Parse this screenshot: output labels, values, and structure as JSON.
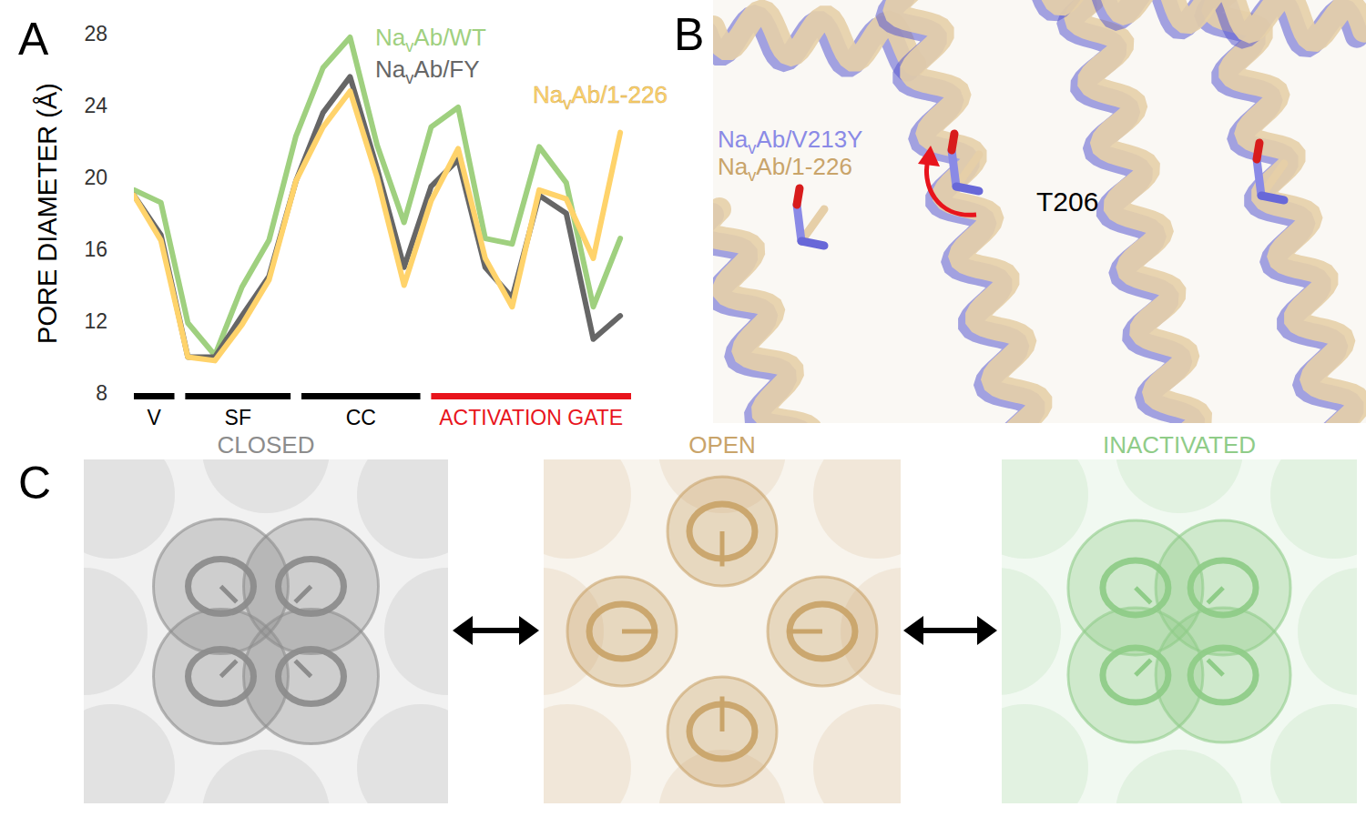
{
  "chart_data": {
    "type": "line",
    "panel_label": "A",
    "y_label": "PORE DIAMETER (Å)",
    "x": [
      0,
      1,
      2,
      3,
      4,
      5,
      6,
      7,
      8,
      9,
      10,
      11,
      12,
      13,
      14,
      15,
      16,
      17,
      18
    ],
    "xlim": [
      0,
      18.4
    ],
    "ylim": [
      8,
      28
    ],
    "yticks": [
      8,
      12,
      16,
      20,
      24,
      28
    ],
    "tick_labels": "y",
    "grid": false,
    "regions": [
      {
        "label": "V",
        "start": 0,
        "end": 1.5,
        "color": "#000000"
      },
      {
        "label": "SF",
        "start": 1.9,
        "end": 5.8,
        "color": "#000000"
      },
      {
        "label": "CC",
        "start": 6.2,
        "end": 10.6,
        "color": "#000000"
      },
      {
        "label": "ACTIVATION GATE",
        "start": 11.0,
        "end": 18.4,
        "color": "#e8141c"
      }
    ],
    "series": [
      {
        "name": "NavAb/WT",
        "color": "#9fd07f",
        "values": [
          19.3,
          18.6,
          11.9,
          10.1,
          13.9,
          16.5,
          22.3,
          26.1,
          27.8,
          21.8,
          17.5,
          22.8,
          23.9,
          16.6,
          16.3,
          21.7,
          19.7,
          12.8,
          16.6
        ]
      },
      {
        "name": "NavAb/FY",
        "color": "#666666",
        "values": [
          19.0,
          16.8,
          10.0,
          10.0,
          12.3,
          14.5,
          19.8,
          23.6,
          25.6,
          20.5,
          15.0,
          19.5,
          21.0,
          15.0,
          13.3,
          19.0,
          18.0,
          11.0,
          12.3
        ]
      },
      {
        "name": "NavAb/1-226",
        "color": "#ffd36b",
        "values": [
          19.0,
          16.5,
          10.0,
          9.8,
          11.8,
          14.3,
          19.8,
          22.8,
          24.8,
          20.0,
          14.0,
          18.7,
          21.6,
          15.5,
          12.8,
          19.3,
          18.8,
          15.5,
          22.5
        ]
      }
    ]
  },
  "panel_b": {
    "label": "B",
    "legend": [
      {
        "name": "NavAb/V213Y",
        "color": "#8a8ae6"
      },
      {
        "name": "NavAb/1-226",
        "color": "#c9a46a"
      }
    ],
    "residue": "T206"
  },
  "panel_c": {
    "label": "C",
    "states": [
      {
        "name": "CLOSED",
        "color": "#8c8c8c"
      },
      {
        "name": "OPEN",
        "color": "#c9a46a"
      },
      {
        "name": "INACTIVATED",
        "color": "#8fcc88"
      }
    ]
  }
}
